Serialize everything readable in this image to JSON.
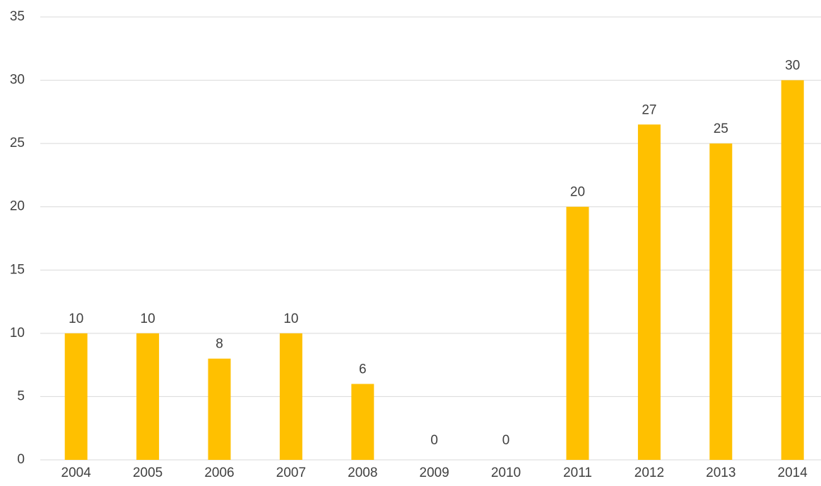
{
  "chart_data": {
    "type": "bar",
    "categories": [
      "2004",
      "2005",
      "2006",
      "2007",
      "2008",
      "2009",
      "2010",
      "2011",
      "2012",
      "2013",
      "2014"
    ],
    "values": [
      10,
      10,
      8,
      10,
      6,
      0,
      0,
      20,
      26.5,
      25,
      30
    ],
    "value_labels": [
      "10",
      "10",
      "8",
      "10",
      "6",
      "0",
      "0",
      "20",
      "27",
      "25",
      "30"
    ],
    "color": "#ffc000",
    "ylim": [
      0,
      35
    ],
    "yticks": [
      0,
      5,
      10,
      15,
      20,
      25,
      30,
      35
    ],
    "grid": true
  }
}
